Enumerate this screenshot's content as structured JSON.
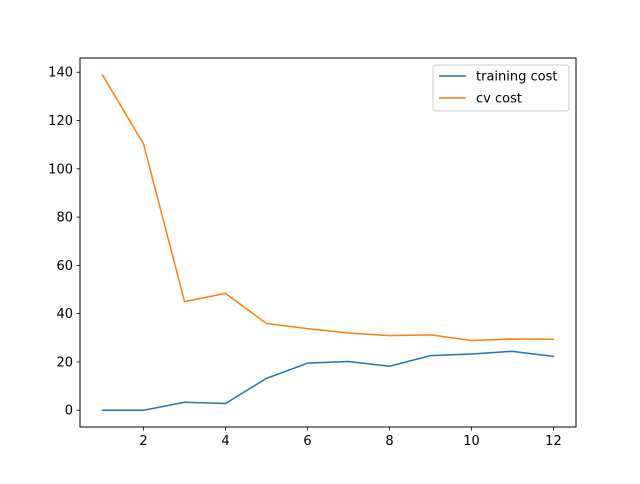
{
  "chart_data": {
    "type": "line",
    "title": "",
    "xlabel": "",
    "ylabel": "",
    "xlim": [
      0.45,
      12.55
    ],
    "ylim": [
      -6.95,
      145.9
    ],
    "x_ticks": [
      2,
      4,
      6,
      8,
      10,
      12
    ],
    "y_ticks": [
      0,
      20,
      40,
      60,
      80,
      100,
      120,
      140
    ],
    "grid": false,
    "legend_position": "top-right",
    "x": [
      1,
      2,
      3,
      4,
      5,
      6,
      7,
      8,
      9,
      10,
      11,
      12
    ],
    "series": [
      {
        "name": "training cost",
        "color": "#1f77b4",
        "values": [
          0.0,
          0.0,
          3.3,
          2.8,
          13.2,
          19.5,
          20.2,
          18.2,
          22.6,
          23.3,
          24.4,
          22.3
        ]
      },
      {
        "name": "cv cost",
        "color": "#ff7f0e",
        "values": [
          138.8,
          110.3,
          45.0,
          48.4,
          35.9,
          33.8,
          32.0,
          30.9,
          31.2,
          28.9,
          29.5,
          29.4
        ]
      }
    ]
  }
}
